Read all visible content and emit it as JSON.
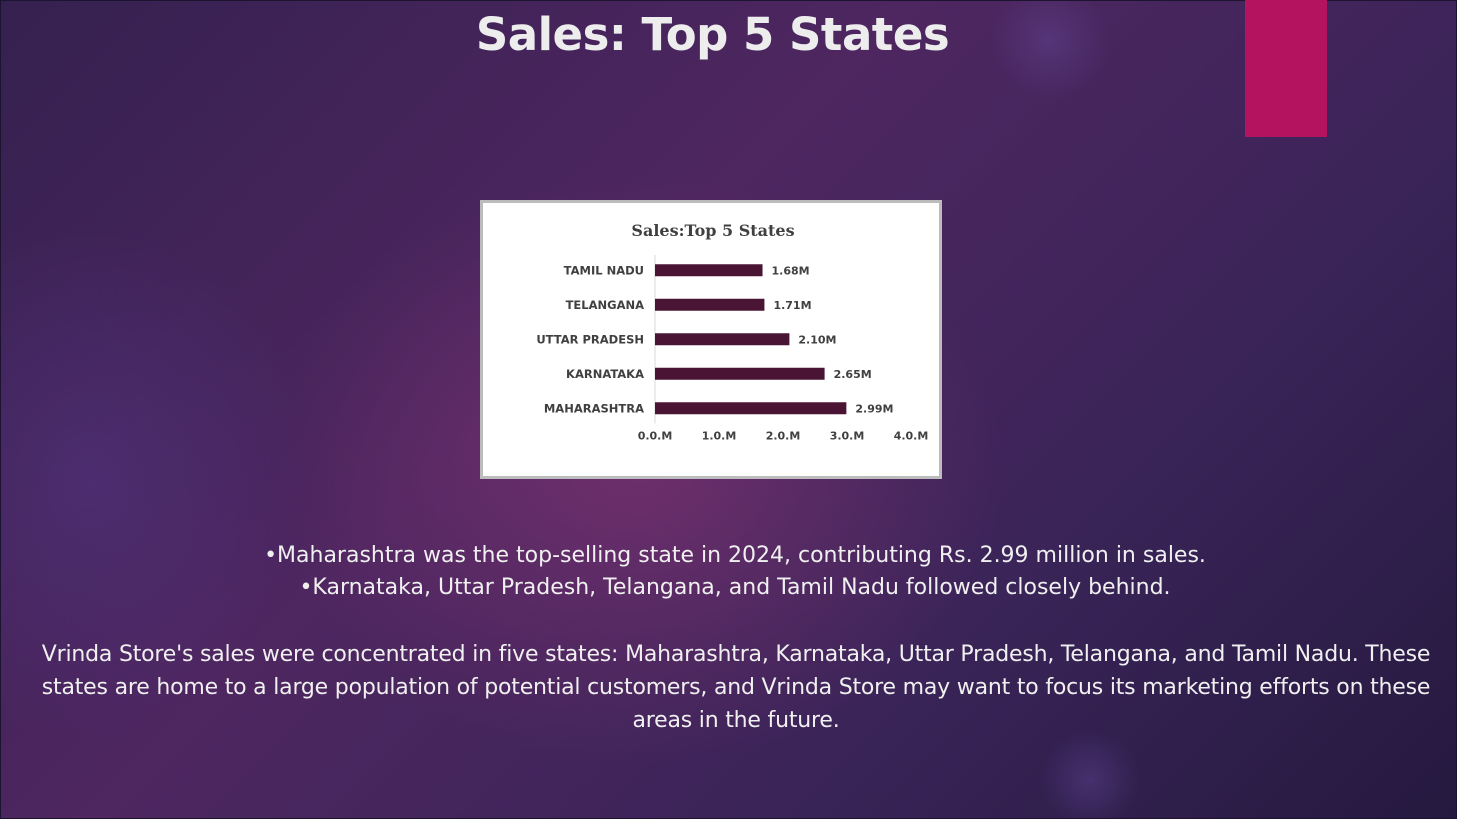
{
  "slide": {
    "title": "Sales: Top 5 States",
    "accent_color": "#b4135f",
    "bullets": [
      "•Maharashtra was the top-selling state in 2024, contributing Rs. 2.99 million in sales.",
      "•Karnataka, Uttar Pradesh, Telangana, and Tamil Nadu followed closely behind."
    ],
    "summary": "Vrinda Store's sales were concentrated in five states: Maharashtra, Karnataka, Uttar Pradesh, Telangana, and Tamil Nadu. These states are home to a large population of potential customers, and Vrinda Store may want to focus its marketing efforts on these areas in the future."
  },
  "chart_data": {
    "type": "bar",
    "orientation": "horizontal",
    "title": "Sales:Top 5 States",
    "categories": [
      "TAMIL NADU",
      "TELANGANA",
      "UTTAR PRADESH",
      "KARNATAKA",
      "MAHARASHTRA"
    ],
    "values": [
      1.68,
      1.71,
      2.1,
      2.65,
      2.99
    ],
    "data_labels": [
      "1.68M",
      "1.71M",
      "2.10M",
      "2.65M",
      "2.99M"
    ],
    "xlim": [
      0,
      4
    ],
    "x_ticks": [
      "0.0.M",
      "1.0.M",
      "2.0.M",
      "3.0.M",
      "4.0.M"
    ],
    "bar_color": "#4a1535",
    "grid": false,
    "legend": "none"
  }
}
